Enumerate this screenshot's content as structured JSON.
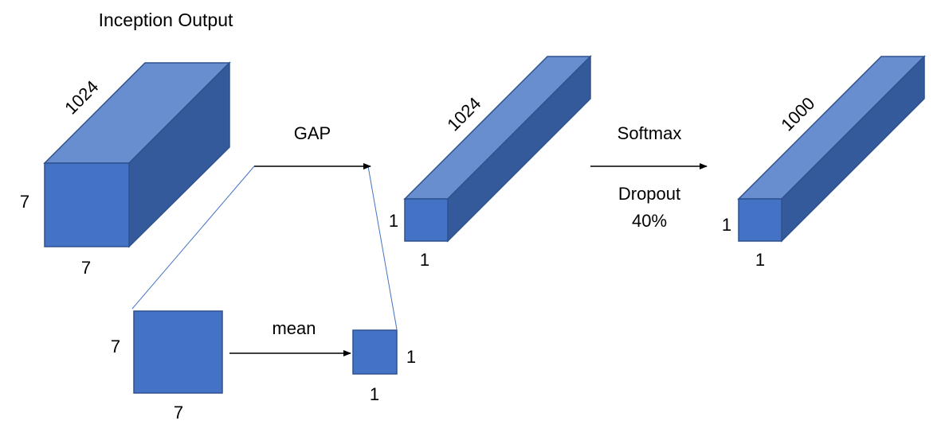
{
  "title": "Inception Output",
  "colors": {
    "front": "#4472C4",
    "top": "#698ED0",
    "side": "#345A9C",
    "edge": "#2F528F",
    "text": "#000000",
    "arrow": "#000000",
    "connector": "#4472C4"
  },
  "blocks": {
    "input": {
      "height": "7",
      "width": "7",
      "depth": "1024"
    },
    "gap_output": {
      "height": "1",
      "width": "1",
      "depth": "1024"
    },
    "softmax_output": {
      "height": "1",
      "width": "1",
      "depth": "1000"
    }
  },
  "squares": {
    "slice": {
      "height": "7",
      "width": "7"
    },
    "mean_result": {
      "height": "1",
      "width": "1"
    }
  },
  "operations": {
    "gap": "GAP",
    "mean": "mean",
    "softmax": "Softmax",
    "dropout": "Dropout",
    "dropout_rate": "40%"
  }
}
